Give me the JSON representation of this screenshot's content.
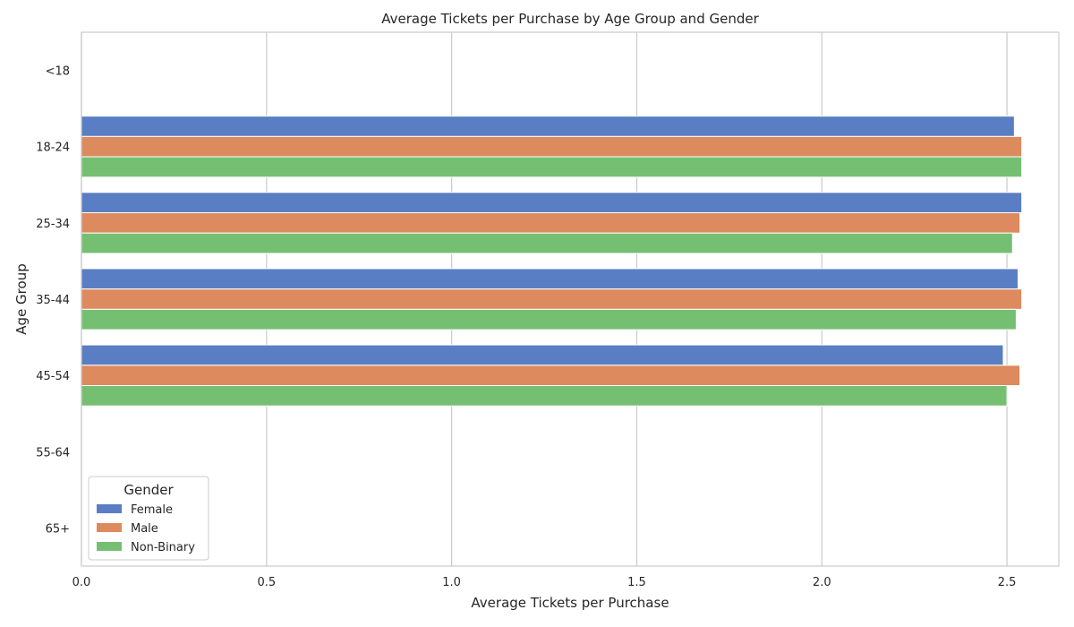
{
  "chart_data": {
    "type": "bar",
    "orientation": "horizontal",
    "title": "Average Tickets per Purchase by Age Group and Gender",
    "xlabel": "Average Tickets per Purchase",
    "ylabel": "Age Group",
    "categories": [
      "<18",
      "18-24",
      "25-34",
      "35-44",
      "45-54",
      "55-64",
      "65+"
    ],
    "xlim": [
      0,
      2.64
    ],
    "xticks": [
      0.0,
      0.5,
      1.0,
      1.5,
      2.0,
      2.5
    ],
    "xtick_labels": [
      "0.0",
      "0.5",
      "1.0",
      "1.5",
      "2.0",
      "2.5"
    ],
    "grid": true,
    "legend": {
      "title": "Gender",
      "placement": "lower-left"
    },
    "series": [
      {
        "name": "Female",
        "color": "#5a7ec3",
        "values": [
          null,
          2.52,
          2.54,
          2.53,
          2.49,
          null,
          null
        ]
      },
      {
        "name": "Male",
        "color": "#dd8a5e",
        "values": [
          null,
          2.54,
          2.535,
          2.54,
          2.535,
          null,
          null
        ]
      },
      {
        "name": "Non-Binary",
        "color": "#75bf72",
        "values": [
          null,
          2.54,
          2.515,
          2.525,
          2.5,
          null,
          null
        ]
      }
    ]
  }
}
